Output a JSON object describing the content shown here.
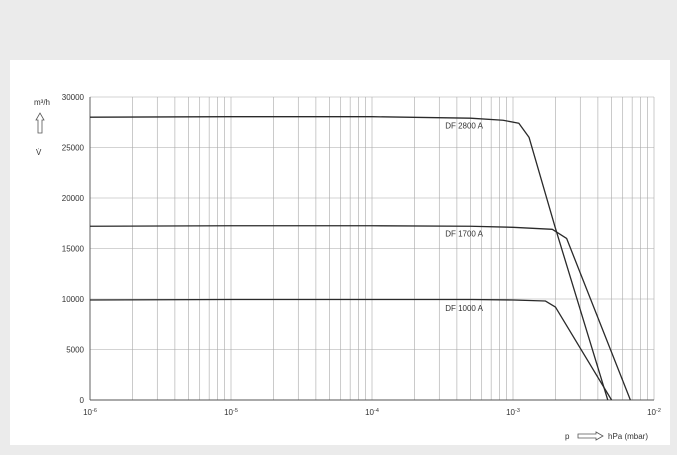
{
  "chart_data": {
    "type": "line",
    "x_scale": "log",
    "xlim": [
      1e-06,
      0.01
    ],
    "ylim": [
      0,
      30000
    ],
    "grid": true,
    "legend": "none",
    "yticks": [
      0,
      5000,
      10000,
      15000,
      20000,
      25000,
      30000
    ],
    "ytick_labels": [
      "0",
      "5000",
      "10000",
      "15000",
      "20000",
      "25000",
      "30000"
    ],
    "xticks": [
      {
        "value": 1e-06,
        "base": "10",
        "exp": "-6"
      },
      {
        "value": 1e-05,
        "base": "10",
        "exp": "-5"
      },
      {
        "value": 0.0001,
        "base": "10",
        "exp": "-4"
      },
      {
        "value": 0.001,
        "base": "10",
        "exp": "-3"
      },
      {
        "value": 0.01,
        "base": "10",
        "exp": "-2"
      }
    ],
    "y_unit": "m³/h",
    "y_symbol": "V̇",
    "x_symbol": "p",
    "x_unit": "hPa (mbar)",
    "series": [
      {
        "name": "DF 2800 A",
        "label_at": [
          0.00045,
          26900
        ],
        "points": [
          [
            1e-06,
            28000
          ],
          [
            1e-05,
            28050
          ],
          [
            0.0001,
            28050
          ],
          [
            0.0005,
            27900
          ],
          [
            0.00085,
            27700
          ],
          [
            0.0011,
            27400
          ],
          [
            0.0013,
            26000
          ],
          [
            0.002,
            17000
          ],
          [
            0.0047,
            0
          ]
        ]
      },
      {
        "name": "DF 1700 A",
        "label_at": [
          0.00045,
          16200
        ],
        "points": [
          [
            1e-06,
            17200
          ],
          [
            1e-05,
            17250
          ],
          [
            0.0001,
            17250
          ],
          [
            0.0005,
            17200
          ],
          [
            0.001,
            17100
          ],
          [
            0.0019,
            16900
          ],
          [
            0.0024,
            16000
          ],
          [
            0.0068,
            0
          ]
        ]
      },
      {
        "name": "DF 1000 A",
        "label_at": [
          0.00045,
          8800
        ],
        "points": [
          [
            1e-06,
            9900
          ],
          [
            1e-05,
            9950
          ],
          [
            0.0001,
            9950
          ],
          [
            0.0005,
            9950
          ],
          [
            0.001,
            9900
          ],
          [
            0.0017,
            9800
          ],
          [
            0.002,
            9200
          ],
          [
            0.005,
            0
          ]
        ]
      }
    ],
    "colors": {
      "background": "#ebebeb",
      "plot_background": "#ffffff",
      "grid": "#a8a8a8",
      "axis": "#555555",
      "curve": "#2a2a2a",
      "text": "#333333"
    }
  }
}
